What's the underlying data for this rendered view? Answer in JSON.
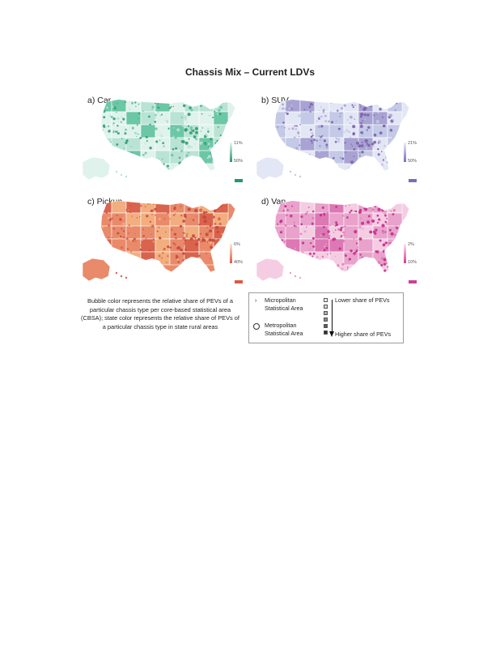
{
  "figure": {
    "title": "Chassis Mix – Current LDVs",
    "panels": [
      {
        "id": "car",
        "label": "a) Car",
        "legend_min": "11%",
        "legend_max": "50%",
        "colors": {
          "land": "#dff2ec",
          "rural": "#b9e3d5",
          "dense": "#2f9e6e",
          "accent": "#6cc7a6",
          "bar_top": "#e9f7f1",
          "bar_bottom": "#219a6a"
        }
      },
      {
        "id": "suv",
        "label": "b) SUV",
        "legend_min": "21%",
        "legend_max": "50%",
        "colors": {
          "land": "#e3e6f4",
          "rural": "#c3c9e6",
          "dense": "#7d63ad",
          "accent": "#a8a3d3",
          "bar_top": "#eceef8",
          "bar_bottom": "#7a6cba"
        }
      },
      {
        "id": "pickup",
        "label": "c) Pickup",
        "legend_min": "6%",
        "legend_max": "40%",
        "colors": {
          "land": "#e98a6a",
          "rural": "#d9634c",
          "dense": "#c4493c",
          "accent": "#f2ae7e",
          "bar_top": "#fde8d8",
          "bar_bottom": "#db5a45"
        }
      },
      {
        "id": "van",
        "label": "d) Van",
        "legend_min": "2%",
        "legend_max": "10%",
        "colors": {
          "land": "#f5cde3",
          "rural": "#e8a2cb",
          "dense": "#c42d8b",
          "accent": "#dc78b4",
          "bar_top": "#fbe6f1",
          "bar_bottom": "#cc3f96"
        }
      }
    ],
    "caption": "Bubble color represents the relative share of PEVs of a particular chassis type per core-based statistical area (CBSA); state color represents the relative share of PEVs of a particular chassis type in state rural areas",
    "legend": {
      "micropolitan": "Micropolitan Statistical Area",
      "metropolitan": "Metropolitan Statistical Area",
      "lower": "Lower share of PEVs",
      "higher": "Higher share of PEVs",
      "scale_colors": [
        "#f4f4f4",
        "#d6d6d6",
        "#b0b0b0",
        "#8a8a8a",
        "#5c5c5c",
        "#2f2f2f"
      ]
    }
  }
}
